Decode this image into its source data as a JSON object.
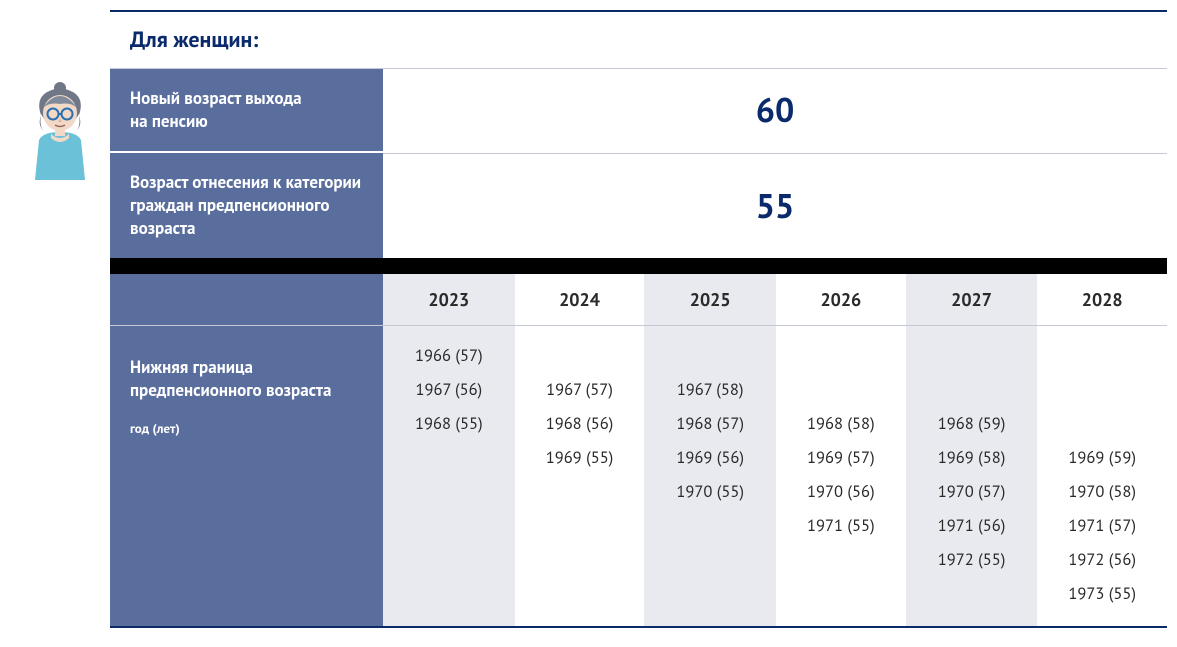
{
  "colors": {
    "navy": "#0a2a6b",
    "slate": "#5a6e9e",
    "shade": "#e8eaef",
    "border": "#c5c9d6",
    "black": "#000000",
    "white": "#ffffff",
    "text": "#2a2a2a"
  },
  "title": "Для женщин:",
  "info_rows": [
    {
      "label": "Новый возраст выхода на пенсию",
      "value": "60"
    },
    {
      "label": "Возраст отнесения к категории граждан предпенсионного возраста",
      "value": "55"
    }
  ],
  "table": {
    "row_label": "Нижняя граница предпенсионного возраста",
    "row_sublabel": "год (лет)",
    "years": [
      "2023",
      "2024",
      "2025",
      "2026",
      "2027",
      "2028"
    ],
    "shaded_cols": [
      true,
      false,
      true,
      false,
      true,
      false
    ],
    "columns": [
      [
        "1966 (57)",
        "1967 (56)",
        "1968 (55)"
      ],
      [
        "1967 (57)",
        "1968 (56)",
        "1969 (55)"
      ],
      [
        "1967 (58)",
        "1968 (57)",
        "1969 (56)",
        "1970 (55)"
      ],
      [
        "1968 (58)",
        "1969 (57)",
        "1970 (56)",
        "1971 (55)"
      ],
      [
        "1968 (59)",
        "1969 (58)",
        "1970 (57)",
        "1971 (56)",
        "1972 (55)"
      ],
      [
        "1969 (59)",
        "1970 (58)",
        "1971 (57)",
        "1972 (56)",
        "1973 (55)"
      ]
    ],
    "col_padding_top": [
      0,
      1,
      1,
      2,
      2,
      3
    ]
  },
  "typography": {
    "title_fontsize": 22,
    "label_fontsize": 17,
    "big_value_fontsize": 34,
    "year_fontsize": 18,
    "entry_fontsize": 16.5,
    "sub_fontsize": 13
  }
}
